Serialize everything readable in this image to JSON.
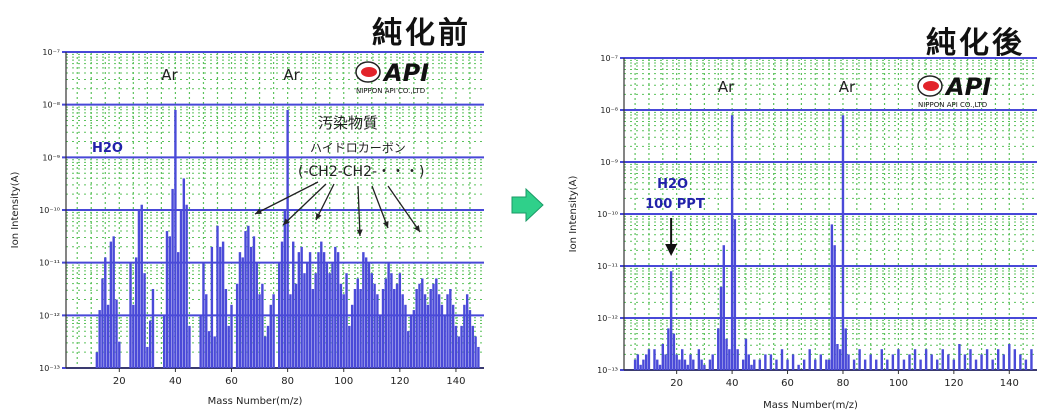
{
  "titles": {
    "before": "純化前",
    "after": "純化後"
  },
  "colors": {
    "axis_band": "#4848d8",
    "bar": "#4a4ad8",
    "grid_dots": "#5cc25c",
    "label": "#2222aa",
    "arrow_fill": "#2fd08a",
    "logo_red": "#e2242a"
  },
  "logo": {
    "brand": "API",
    "company": "NIPPON API CO.,LTD"
  },
  "transition_icon": "arrow-right-icon",
  "chart_data": [
    {
      "type": "bar",
      "title": "純化前",
      "xlabel": "Mass Number(m/z)",
      "ylabel": "Ion Intensity(A)",
      "yscale": "log",
      "ylim_exp": [
        -13,
        -7
      ],
      "xlim": [
        1,
        150
      ],
      "xticks": [
        20,
        40,
        60,
        80,
        100,
        120,
        140
      ],
      "ytick_labels": [
        "10⁻⁷",
        "10⁻⁸",
        "10⁻⁹",
        "10⁻¹⁰",
        "10⁻¹¹",
        "10⁻¹²",
        "10⁻¹³"
      ],
      "grid": "dotted",
      "annotations": [
        {
          "text": "Ar",
          "x": 40
        },
        {
          "text": "Ar",
          "x": 80
        },
        {
          "text": "H2O",
          "x": 18
        },
        {
          "text": "汚染物質",
          "x": 100
        },
        {
          "text": "ハイドロカーボン",
          "x": 100
        },
        {
          "text": "(-CH2-CH2-・・・)",
          "x": 100
        }
      ],
      "series": [
        {
          "x": [
            12,
            13,
            14,
            15,
            16,
            17,
            18,
            19,
            20,
            24,
            25,
            26,
            27,
            28,
            29,
            30,
            31,
            32,
            36,
            37,
            38,
            39,
            40,
            41,
            42,
            43,
            44,
            45,
            49,
            50,
            51,
            52,
            53,
            54,
            55,
            56,
            57,
            58,
            59,
            60,
            62,
            63,
            64,
            65,
            66,
            67,
            68,
            69,
            70,
            71,
            72,
            73,
            74,
            75,
            77,
            78,
            79,
            80,
            81,
            82,
            83,
            84,
            85,
            86,
            87,
            88,
            89,
            90,
            91,
            92,
            93,
            94,
            95,
            96,
            97,
            98,
            99,
            100,
            101,
            102,
            103,
            104,
            105,
            106,
            107,
            108,
            109,
            110,
            111,
            112,
            113,
            114,
            115,
            116,
            117,
            118,
            119,
            120,
            121,
            122,
            123,
            124,
            125,
            126,
            127,
            128,
            129,
            130,
            131,
            132,
            133,
            134,
            135,
            136,
            137,
            138,
            139,
            140,
            141,
            142,
            143,
            144,
            145,
            146,
            147,
            148
          ],
          "y_exp": [
            -12.7,
            -11.9,
            -11.3,
            -10.9,
            -11.8,
            -10.6,
            -10.5,
            -11.7,
            -12.5,
            -11.0,
            -11.8,
            -10.9,
            -10.0,
            -9.9,
            -11.2,
            -12.6,
            -12.1,
            -11.5,
            -12.0,
            -10.4,
            -10.5,
            -9.6,
            -8.1,
            -10.8,
            -10.0,
            -9.4,
            -9.9,
            -12.2,
            -12.0,
            -11.0,
            -11.6,
            -12.3,
            -10.7,
            -12.4,
            -10.3,
            -10.7,
            -10.6,
            -11.5,
            -12.2,
            -11.8,
            -11.4,
            -10.8,
            -10.9,
            -10.4,
            -10.3,
            -10.7,
            -10.5,
            -11.0,
            -11.6,
            -11.4,
            -12.4,
            -12.2,
            -11.8,
            -11.6,
            -11.0,
            -10.6,
            -10.0,
            -8.1,
            -11.6,
            -10.6,
            -11.4,
            -10.8,
            -10.7,
            -11.2,
            -11.0,
            -10.8,
            -11.5,
            -11.2,
            -10.8,
            -10.6,
            -10.8,
            -11.0,
            -11.2,
            -11.0,
            -10.7,
            -10.8,
            -11.4,
            -11.6,
            -11.2,
            -12.2,
            -11.8,
            -11.5,
            -11.3,
            -11.5,
            -10.8,
            -10.9,
            -11.0,
            -11.2,
            -11.4,
            -11.6,
            -12.0,
            -11.5,
            -11.3,
            -11.0,
            -11.2,
            -11.5,
            -11.4,
            -11.2,
            -11.6,
            -11.8,
            -12.3,
            -12.0,
            -11.9,
            -11.5,
            -11.4,
            -11.3,
            -11.6,
            -11.8,
            -11.5,
            -11.4,
            -11.3,
            -11.6,
            -11.8,
            -12.0,
            -11.6,
            -11.5,
            -11.8,
            -12.2,
            -12.4,
            -12.2,
            -11.8,
            -11.6,
            -11.9,
            -12.2,
            -12.4,
            -12.6
          ]
        }
      ]
    },
    {
      "type": "bar",
      "title": "純化後",
      "xlabel": "Mass Number(m/z)",
      "ylabel": "Ion Intensity(A)",
      "yscale": "log",
      "ylim_exp": [
        -13,
        -7
      ],
      "xlim": [
        1,
        150
      ],
      "xticks": [
        20,
        40,
        60,
        80,
        100,
        120,
        140
      ],
      "ytick_labels": [
        "10⁻⁷",
        "10⁻⁸",
        "10⁻⁹",
        "10⁻¹⁰",
        "10⁻¹¹",
        "10⁻¹²",
        "10⁻¹³"
      ],
      "grid": "dotted",
      "annotations": [
        {
          "text": "Ar",
          "x": 40
        },
        {
          "text": "Ar",
          "x": 80
        },
        {
          "text": "H2O",
          "x": 18
        },
        {
          "text": "100 PPT",
          "x": 18
        }
      ],
      "series": [
        {
          "x": [
            5,
            6,
            7,
            8,
            9,
            10,
            12,
            13,
            14,
            15,
            16,
            17,
            18,
            19,
            20,
            21,
            22,
            23,
            24,
            25,
            26,
            28,
            29,
            30,
            32,
            33,
            35,
            36,
            37,
            38,
            39,
            40,
            41,
            42,
            44,
            45,
            46,
            47,
            48,
            50,
            52,
            54,
            56,
            58,
            60,
            62,
            64,
            66,
            68,
            70,
            72,
            74,
            75,
            76,
            77,
            78,
            79,
            80,
            81,
            82,
            84,
            86,
            88,
            90,
            92,
            94,
            96,
            98,
            100,
            102,
            104,
            106,
            108,
            110,
            112,
            114,
            116,
            118,
            120,
            122,
            124,
            126,
            128,
            130,
            132,
            134,
            136,
            138,
            140,
            142,
            144,
            146,
            148
          ],
          "y_exp": [
            -12.8,
            -12.7,
            -12.9,
            -12.8,
            -12.7,
            -12.6,
            -12.6,
            -12.8,
            -12.9,
            -12.5,
            -12.7,
            -12.2,
            -11.1,
            -12.3,
            -12.7,
            -12.8,
            -12.6,
            -12.8,
            -12.9,
            -12.7,
            -12.8,
            -12.6,
            -12.8,
            -12.9,
            -12.8,
            -12.7,
            -12.2,
            -11.4,
            -10.6,
            -12.4,
            -12.6,
            -8.1,
            -10.1,
            -12.6,
            -12.8,
            -12.4,
            -12.7,
            -12.9,
            -12.8,
            -12.8,
            -12.7,
            -12.7,
            -12.8,
            -12.6,
            -12.8,
            -12.7,
            -12.9,
            -12.8,
            -12.6,
            -12.8,
            -12.7,
            -12.8,
            -12.8,
            -10.2,
            -10.6,
            -12.5,
            -12.6,
            -8.1,
            -12.2,
            -12.7,
            -12.8,
            -12.6,
            -12.8,
            -12.7,
            -12.8,
            -12.6,
            -12.8,
            -12.7,
            -12.6,
            -12.8,
            -12.7,
            -12.6,
            -12.8,
            -12.6,
            -12.7,
            -12.8,
            -12.6,
            -12.7,
            -12.8,
            -12.5,
            -12.7,
            -12.6,
            -12.8,
            -12.7,
            -12.6,
            -12.8,
            -12.6,
            -12.7,
            -12.5,
            -12.6,
            -12.7,
            -12.8,
            -12.6
          ]
        }
      ]
    }
  ]
}
